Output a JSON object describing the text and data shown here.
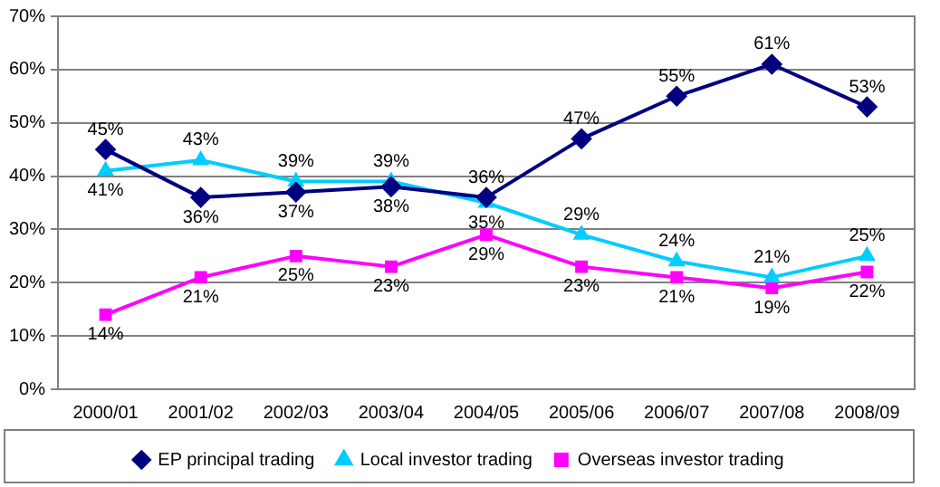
{
  "chart_data": {
    "type": "line",
    "categories": [
      "2000/01",
      "2001/02",
      "2002/03",
      "2003/04",
      "2004/05",
      "2005/06",
      "2006/07",
      "2007/08",
      "2008/09"
    ],
    "series": [
      {
        "name": "EP principal trading",
        "color": "#000080",
        "marker": "diamond",
        "values": [
          45,
          36,
          37,
          38,
          36,
          47,
          55,
          61,
          53
        ],
        "value_labels": [
          "45%",
          "36%",
          "37%",
          "38%",
          "36%",
          "47%",
          "55%",
          "61%",
          "53%"
        ]
      },
      {
        "name": "Local investor trading",
        "color": "#00ccff",
        "marker": "triangle",
        "values": [
          41,
          43,
          39,
          39,
          35,
          29,
          24,
          21,
          25
        ],
        "value_labels": [
          "41%",
          "43%",
          "39%",
          "39%",
          "35%",
          "29%",
          "24%",
          "21%",
          "25%"
        ]
      },
      {
        "name": "Overseas investor trading",
        "color": "#ff00ff",
        "marker": "square",
        "values": [
          14,
          21,
          25,
          23,
          29,
          23,
          21,
          19,
          22
        ],
        "value_labels": [
          "14%",
          "21%",
          "25%",
          "23%",
          "29%",
          "23%",
          "21%",
          "19%",
          "22%"
        ]
      }
    ],
    "ylim": [
      0,
      70
    ],
    "yticks": [
      {
        "value": 0,
        "label": "0%"
      },
      {
        "value": 10,
        "label": "10%"
      },
      {
        "value": 20,
        "label": "20%"
      },
      {
        "value": 30,
        "label": "30%"
      },
      {
        "value": 40,
        "label": "40%"
      },
      {
        "value": 50,
        "label": "50%"
      },
      {
        "value": 60,
        "label": "60%"
      },
      {
        "value": 70,
        "label": "70%"
      }
    ],
    "grid": "y",
    "legend": "bottom",
    "line_style": "solid"
  }
}
